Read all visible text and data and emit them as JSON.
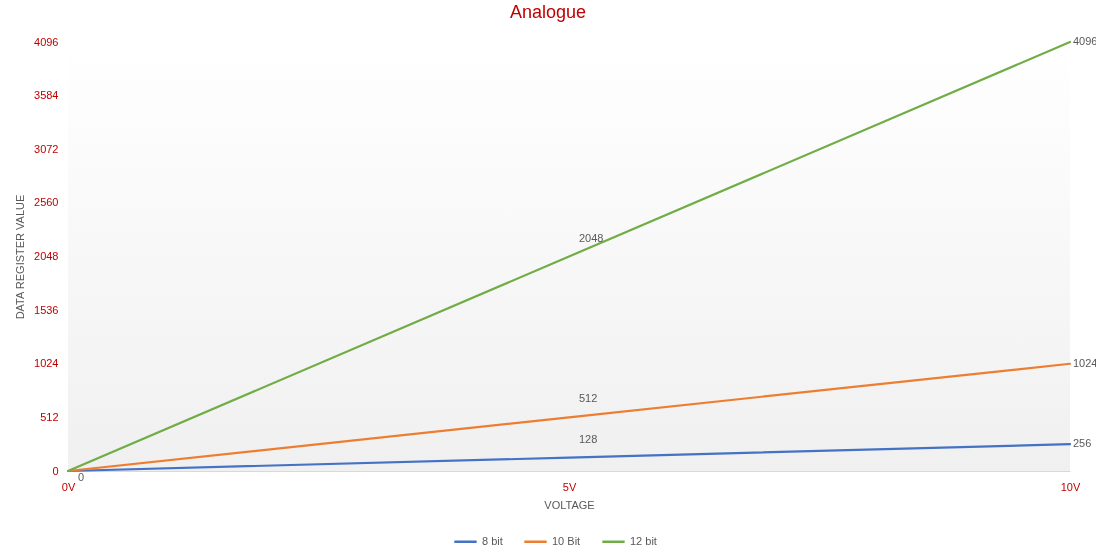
{
  "chart_data": {
    "type": "line",
    "title": "Analogue",
    "xlabel": "VOLTAGE",
    "ylabel": "DATA REGISTER VALUE",
    "categories": [
      "0V",
      "5V",
      "10V"
    ],
    "series": [
      {
        "name": "8 bit",
        "color": "#4472c4",
        "values": [
          0,
          128,
          256
        ],
        "value_labels": [
          "0",
          "128",
          "256"
        ]
      },
      {
        "name": "10 Bit",
        "color": "#ed7d31",
        "values": [
          0,
          512,
          1024
        ],
        "value_labels": [
          null,
          "512",
          "1024"
        ]
      },
      {
        "name": "12 bit",
        "color": "#70ad47",
        "values": [
          0,
          2048,
          4096
        ],
        "value_labels": [
          null,
          "2048",
          "4096"
        ]
      }
    ],
    "ylim": [
      0,
      4096
    ],
    "yticks": [
      0,
      512,
      1024,
      1536,
      2048,
      2560,
      3072,
      3584,
      4096
    ],
    "grid": false,
    "legend": "bottom",
    "line_style": "solid"
  }
}
